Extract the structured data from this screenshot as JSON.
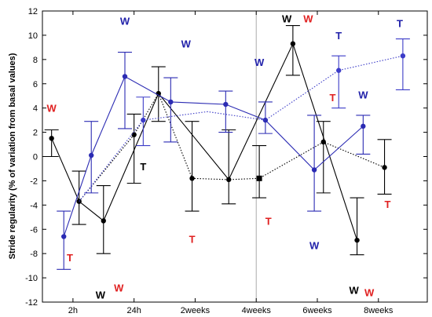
{
  "chart_data": {
    "type": "line",
    "title": "",
    "xlabel": "",
    "ylabel": "Stride regularity (% of variation from basal values)",
    "ylim": [
      -12,
      12
    ],
    "yticks": [
      -12,
      -10,
      -8,
      -6,
      -4,
      -2,
      0,
      2,
      4,
      6,
      8,
      10,
      12
    ],
    "xlim": [
      0,
      6.3
    ],
    "xticks": [
      {
        "x": 0.5,
        "label": "2h"
      },
      {
        "x": 1.5,
        "label": "24h"
      },
      {
        "x": 2.5,
        "label": "2weeks"
      },
      {
        "x": 3.5,
        "label": "4weeks"
      },
      {
        "x": 4.5,
        "label": "6weeks"
      },
      {
        "x": 5.5,
        "label": "8weeks"
      }
    ],
    "divider_x": 3.5,
    "grid": false,
    "series": [
      {
        "key": "black_solid",
        "color": "#000000",
        "style": "solid",
        "points": [
          {
            "x": 0.15,
            "y": 1.5,
            "lo": 0.0,
            "hi": 2.2,
            "marker": "circle"
          },
          {
            "x": 0.6,
            "y": -3.7,
            "lo": -5.6,
            "hi": -1.2,
            "marker": "circle"
          },
          {
            "x": 1.0,
            "y": -5.3,
            "lo": -8.0,
            "hi": -2.4,
            "marker": "circle"
          },
          {
            "x": 1.9,
            "y": 5.2,
            "lo": 2.9,
            "hi": 7.4,
            "marker": "circle"
          },
          {
            "x": 3.05,
            "y": -1.9,
            "lo": -3.9,
            "hi": 2.2,
            "marker": "circle"
          },
          {
            "x": 4.1,
            "y": 9.3,
            "lo": 6.7,
            "hi": 10.8,
            "marker": "circle"
          },
          {
            "x": 5.15,
            "y": -6.9,
            "lo": -8.1,
            "hi": -3.4,
            "marker": "circle"
          }
        ]
      },
      {
        "key": "black_dotted",
        "color": "#000000",
        "style": "dotted",
        "points": [
          {
            "x": 0.6,
            "y": -3.7,
            "lo": -5.6,
            "hi": -1.2,
            "marker": "none"
          },
          {
            "x": 1.5,
            "y": 1.8,
            "lo": -2.2,
            "hi": 3.5,
            "marker": "circle"
          },
          {
            "x": 1.9,
            "y": 5.2,
            "lo": 2.9,
            "hi": 7.4,
            "marker": "none"
          },
          {
            "x": 2.45,
            "y": -1.8,
            "lo": -4.5,
            "hi": 2.9,
            "marker": "circle"
          },
          {
            "x": 3.05,
            "y": -1.9,
            "lo": -3.9,
            "hi": 2.2,
            "marker": "none"
          },
          {
            "x": 3.55,
            "y": -1.8,
            "lo": -3.4,
            "hi": 0.9,
            "marker": "square"
          },
          {
            "x": 4.6,
            "y": 1.2,
            "lo": -3.0,
            "hi": 2.9,
            "marker": "circle"
          },
          {
            "x": 5.6,
            "y": -0.9,
            "lo": -3.1,
            "hi": 1.4,
            "marker": "circle"
          }
        ]
      },
      {
        "key": "blue_solid",
        "color": "#2b2bb3",
        "style": "solid",
        "points": [
          {
            "x": 0.35,
            "y": -6.6,
            "lo": -9.3,
            "hi": -4.5,
            "marker": "circle"
          },
          {
            "x": 0.8,
            "y": 0.1,
            "lo": -3.0,
            "hi": 2.9,
            "marker": "circle"
          },
          {
            "x": 1.35,
            "y": 6.6,
            "lo": 2.3,
            "hi": 8.6,
            "marker": "circle"
          },
          {
            "x": 2.1,
            "y": 4.5,
            "lo": 1.2,
            "hi": 6.5,
            "marker": "circle"
          },
          {
            "x": 3.0,
            "y": 4.3,
            "lo": 2.0,
            "hi": 5.4,
            "marker": "circle"
          },
          {
            "x": 3.65,
            "y": 3.0,
            "lo": 1.9,
            "hi": 4.5,
            "marker": "circle"
          },
          {
            "x": 4.45,
            "y": -1.1,
            "lo": -4.5,
            "hi": 3.4,
            "marker": "circle"
          },
          {
            "x": 5.25,
            "y": 2.5,
            "lo": 0.2,
            "hi": 3.4,
            "marker": "circle"
          }
        ]
      },
      {
        "key": "blue_dotted",
        "color": "#3c3cc8",
        "style": "dotted",
        "points": [
          {
            "x": 0.6,
            "y": -3.7,
            "lo": -5.6,
            "hi": -1.2,
            "marker": "none"
          },
          {
            "x": 1.65,
            "y": 3.0,
            "lo": 0.9,
            "hi": 4.9,
            "marker": "circle"
          },
          {
            "x": 2.7,
            "y": 3.7,
            "lo": 0.8,
            "hi": 5.6,
            "marker": "none"
          },
          {
            "x": 3.65,
            "y": 3.0,
            "lo": 1.9,
            "hi": 4.5,
            "marker": "none"
          },
          {
            "x": 4.85,
            "y": 7.1,
            "lo": 4.0,
            "hi": 8.3,
            "marker": "circle"
          },
          {
            "x": 5.9,
            "y": 8.3,
            "lo": 5.5,
            "hi": 9.7,
            "marker": "circle"
          }
        ]
      }
    ],
    "annotations": [
      {
        "text": "W",
        "x": 0.15,
        "y": 4.0,
        "color": "#e02020"
      },
      {
        "text": "T",
        "x": 0.45,
        "y": -8.3,
        "color": "#e02020"
      },
      {
        "text": "W",
        "x": 0.95,
        "y": -11.4,
        "color": "#000000"
      },
      {
        "text": "W",
        "x": 1.25,
        "y": -10.8,
        "color": "#e02020"
      },
      {
        "text": "W",
        "x": 1.35,
        "y": 11.2,
        "color": "#2222aa"
      },
      {
        "text": "T",
        "x": 1.65,
        "y": -0.8,
        "color": "#000000"
      },
      {
        "text": "W",
        "x": 2.35,
        "y": 9.3,
        "color": "#2222aa"
      },
      {
        "text": "T",
        "x": 2.45,
        "y": -6.8,
        "color": "#e02020"
      },
      {
        "text": "W",
        "x": 3.55,
        "y": 7.8,
        "color": "#2222aa"
      },
      {
        "text": "T",
        "x": 3.7,
        "y": -5.3,
        "color": "#e02020"
      },
      {
        "text": "W",
        "x": 4.0,
        "y": 11.4,
        "color": "#000000"
      },
      {
        "text": "W",
        "x": 4.35,
        "y": 11.4,
        "color": "#e02020"
      },
      {
        "text": "T",
        "x": 4.75,
        "y": 4.9,
        "color": "#e02020"
      },
      {
        "text": "W",
        "x": 4.45,
        "y": -7.3,
        "color": "#2222aa"
      },
      {
        "text": "T",
        "x": 4.85,
        "y": 10.0,
        "color": "#2222aa"
      },
      {
        "text": "W",
        "x": 5.25,
        "y": 5.1,
        "color": "#2222aa"
      },
      {
        "text": "W",
        "x": 5.1,
        "y": -11.0,
        "color": "#000000"
      },
      {
        "text": "W",
        "x": 5.35,
        "y": -11.2,
        "color": "#e02020"
      },
      {
        "text": "T",
        "x": 5.85,
        "y": 11.0,
        "color": "#2222aa"
      },
      {
        "text": "T",
        "x": 5.65,
        "y": -3.9,
        "color": "#e02020"
      }
    ]
  }
}
